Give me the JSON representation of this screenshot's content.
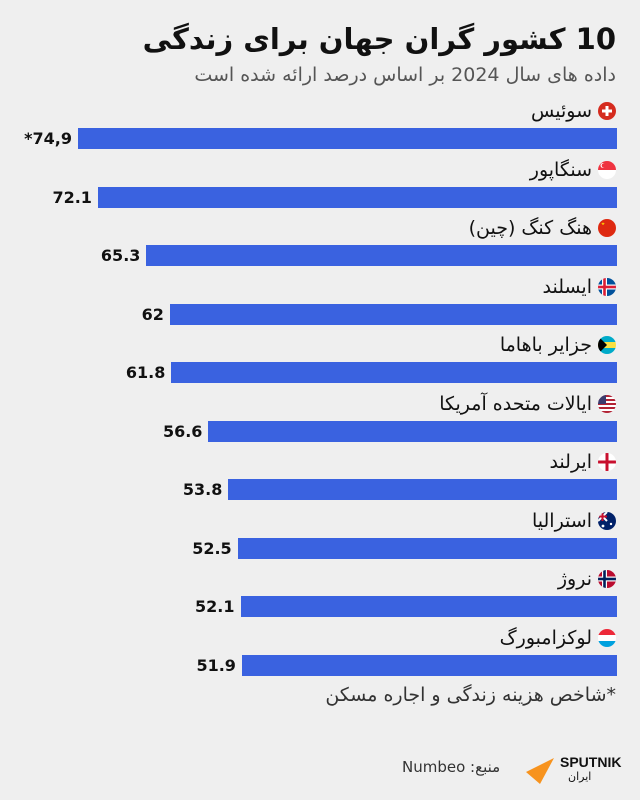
{
  "header": {
    "title": "10 کشور گران جهان برای زندگی",
    "subtitle": "داده های سال 2024 بر اساس درصد ارائه شده است"
  },
  "chart_data": {
    "type": "bar",
    "orientation": "horizontal",
    "bar_color": "#3a62e0",
    "categories": [
      "سوئیس",
      "سنگاپور",
      "هنگ کنگ (چین)",
      "ایسلند",
      "جزایر باهاما",
      "ایالات متحده آمریکا",
      "ایرلند",
      "استرالیا",
      "نروژ",
      "لوکزامبورگ"
    ],
    "values": [
      74.9,
      72.1,
      65.3,
      62,
      61.8,
      56.6,
      53.8,
      52.5,
      52.1,
      51.9
    ],
    "value_labels": [
      "*74,9",
      "72.1",
      "65.3",
      "62",
      "61.8",
      "56.6",
      "53.8",
      "52.5",
      "52.1",
      "51.9"
    ],
    "flags": [
      "switzerland-flag",
      "singapore-flag",
      "china-flag",
      "iceland-flag",
      "bahamas-flag",
      "usa-flag",
      "northern-ireland-flag",
      "australia-flag",
      "norway-flag",
      "luxembourg-flag"
    ]
  },
  "footer": {
    "note": "*شاخص هزینه زندگی و اجاره مسکن",
    "source": "منبع: Numbeo",
    "logo_text": "SPUTNIK",
    "logo_sub": "ایران"
  }
}
